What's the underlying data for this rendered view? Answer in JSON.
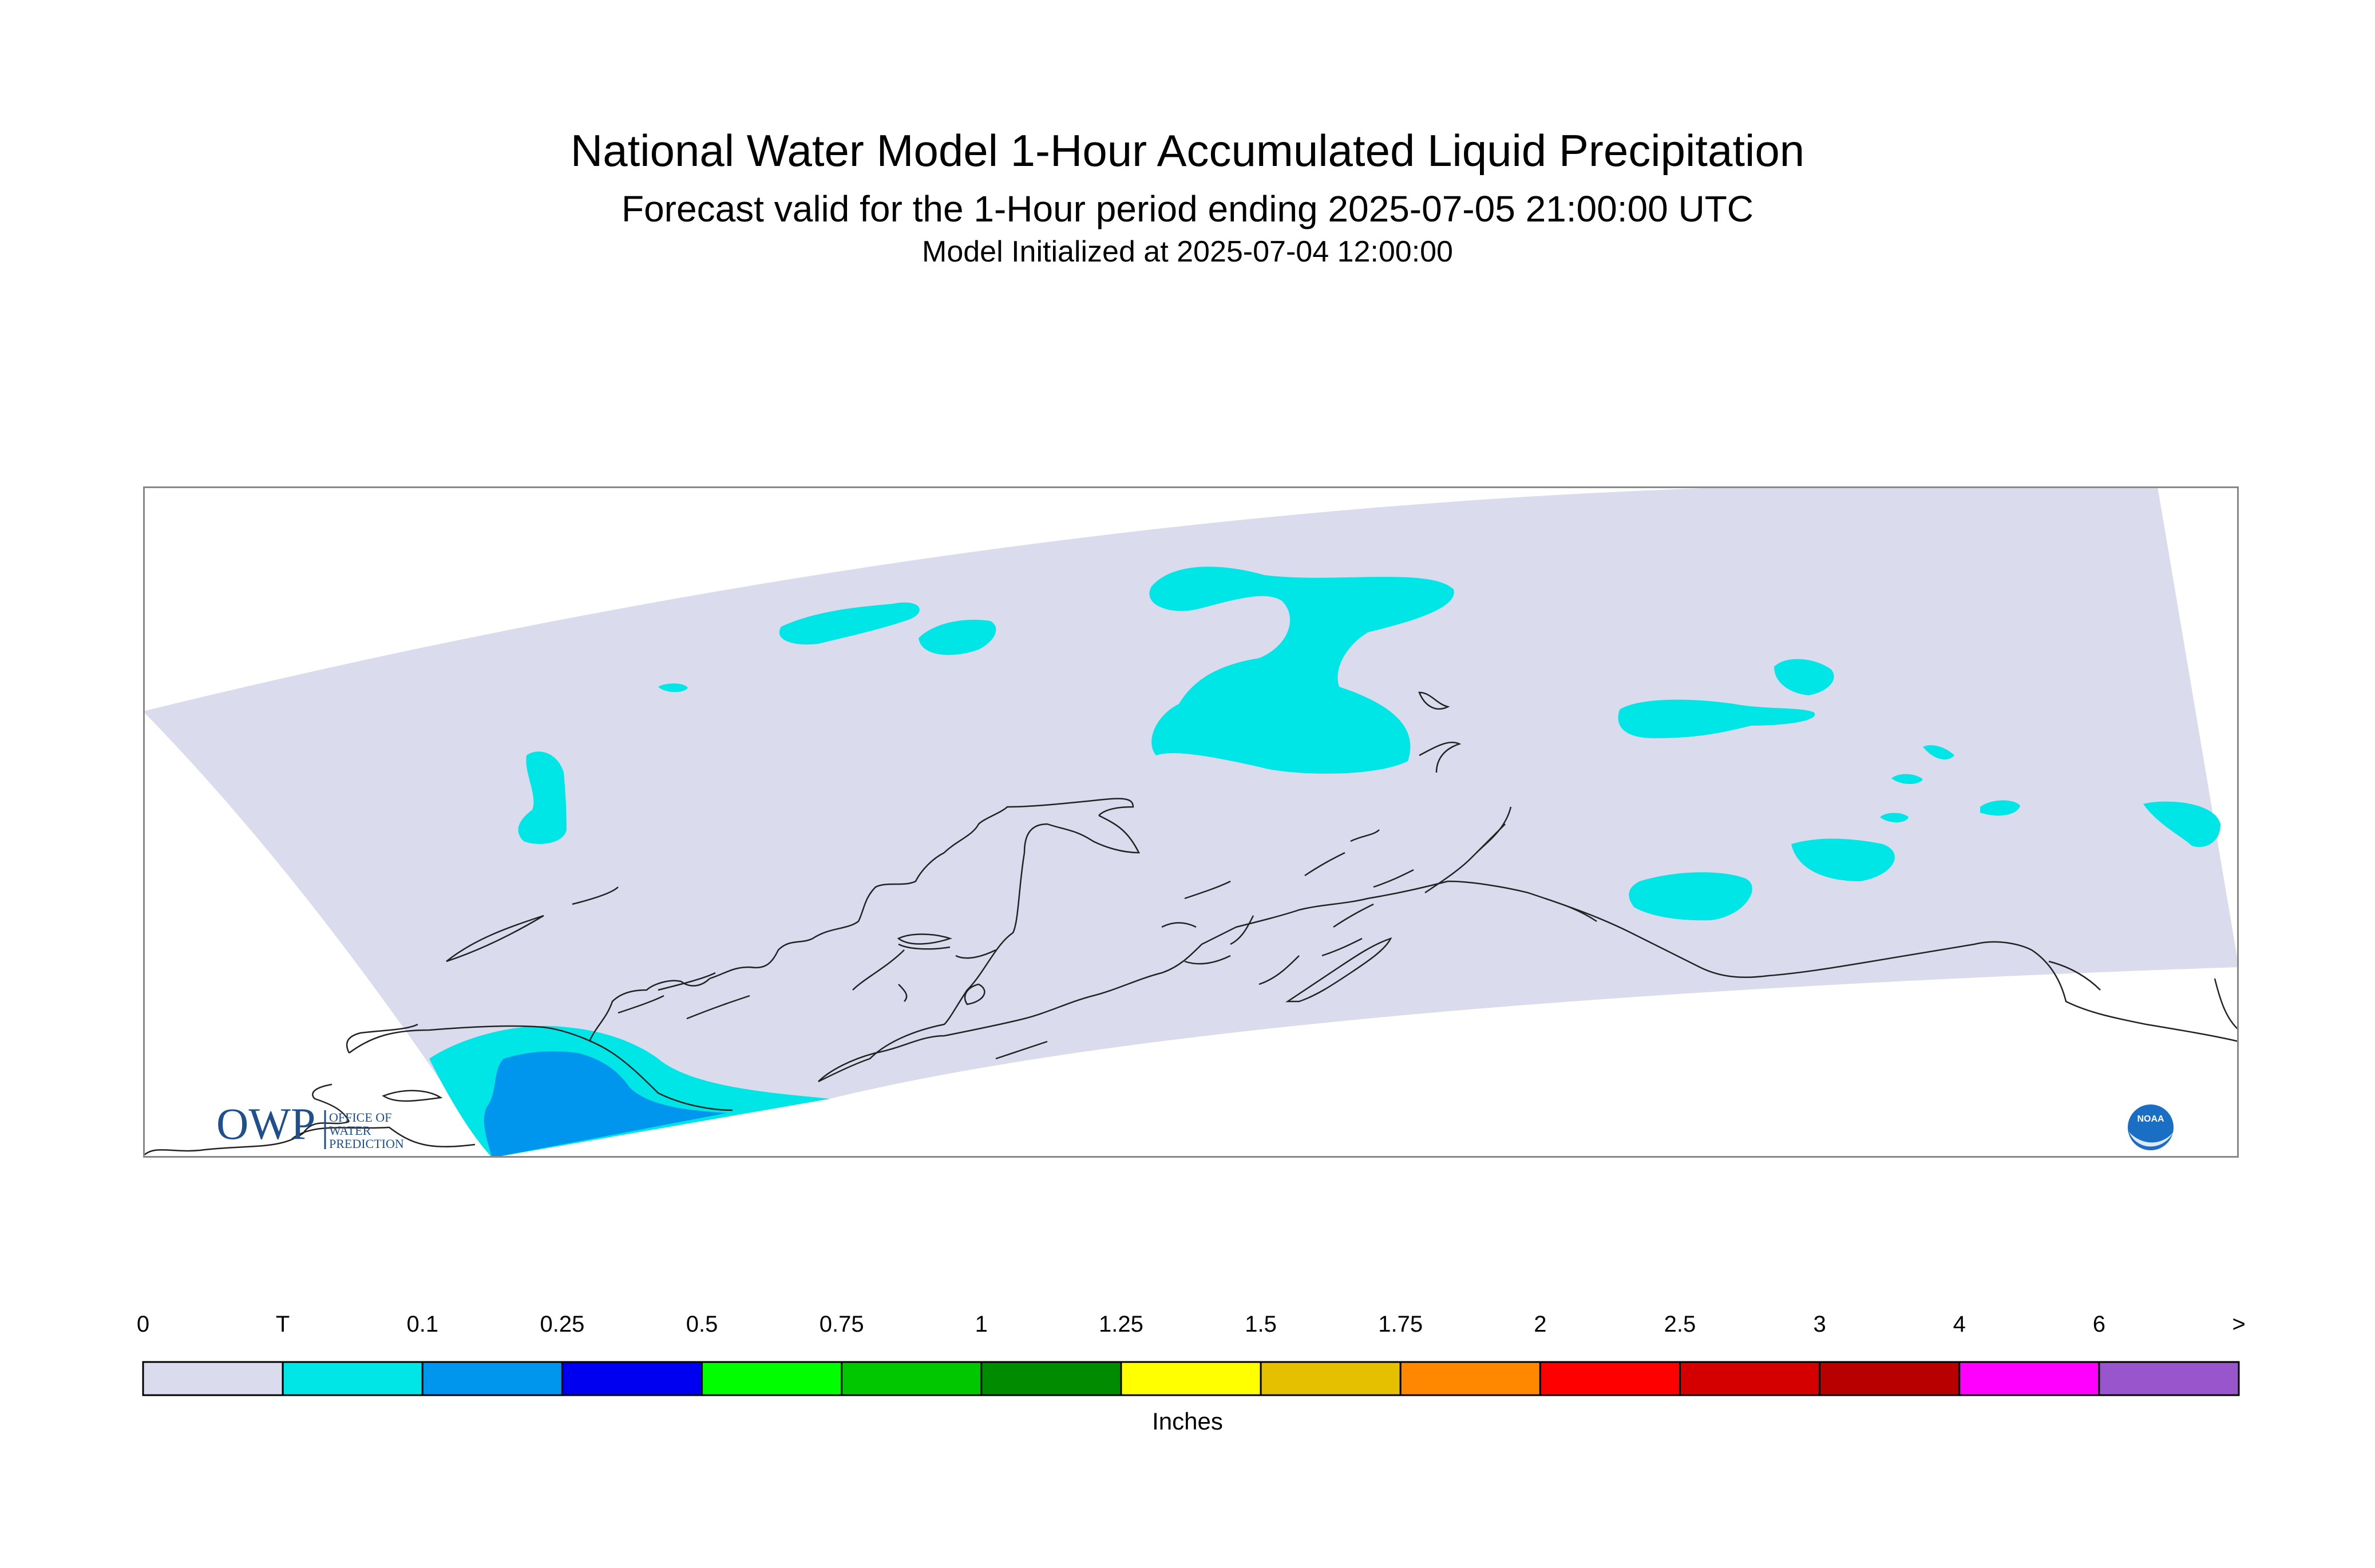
{
  "title": "National Water Model 1-Hour Accumulated Liquid Precipitation",
  "subtitle": "Forecast valid for the 1-Hour period ending 2025-07-05 21:00:00 UTC",
  "init_line": "Model Initialized at 2025-07-04 12:00:00",
  "logos": {
    "owp": {
      "mark": "OWP",
      "text_lines": [
        "OFFICE OF",
        "WATER",
        "PREDICTION"
      ],
      "color": "#1f4f8c"
    },
    "noaa": {
      "text": "NOAA",
      "color": "#1a6fc4"
    }
  },
  "legend": {
    "labels": [
      "0",
      "T",
      "0.1",
      "0.25",
      "0.5",
      "0.75",
      "1",
      "1.25",
      "1.5",
      "1.75",
      "2",
      "2.5",
      "3",
      "4",
      "6",
      ">"
    ],
    "colors": [
      "#dadcee",
      "#00e5e6",
      "#0096ee",
      "#0000f0",
      "#00fd00",
      "#00c700",
      "#008b00",
      "#ffff00",
      "#e4c000",
      "#ff8800",
      "#ff0000",
      "#d40000",
      "#b90000",
      "#ff00ff",
      "#9955cc"
    ],
    "units": "Inches"
  },
  "map_colors": {
    "domain": "#dadcee",
    "trace": "#00e5e6",
    "light": "#0096ee",
    "coast": "#222222"
  }
}
